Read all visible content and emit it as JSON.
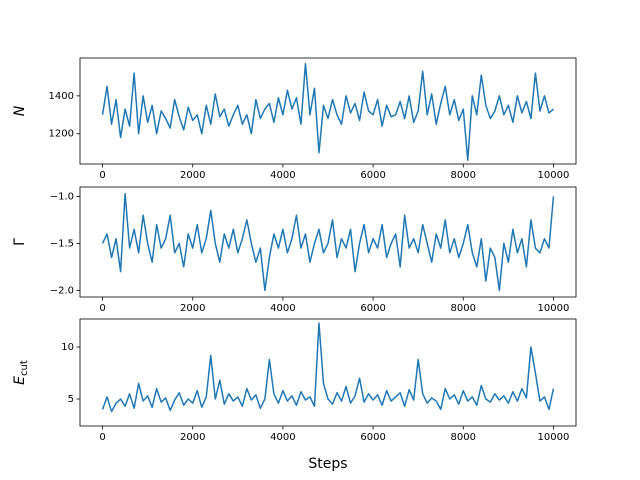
{
  "chart_data": [
    {
      "type": "line",
      "ylabel": "N",
      "x": [
        0,
        100,
        200,
        300,
        400,
        500,
        600,
        700,
        800,
        900,
        1000,
        1100,
        1200,
        1300,
        1400,
        1500,
        1600,
        1700,
        1800,
        1900,
        2000,
        2100,
        2200,
        2300,
        2400,
        2500,
        2600,
        2700,
        2800,
        2900,
        3000,
        3100,
        3200,
        3300,
        3400,
        3500,
        3600,
        3700,
        3800,
        3900,
        4000,
        4100,
        4200,
        4300,
        4400,
        4500,
        4600,
        4700,
        4800,
        4900,
        5000,
        5100,
        5200,
        5300,
        5400,
        5500,
        5600,
        5700,
        5800,
        5900,
        6000,
        6100,
        6200,
        6300,
        6400,
        6500,
        6600,
        6700,
        6800,
        6900,
        7000,
        7100,
        7200,
        7300,
        7400,
        7500,
        7600,
        7700,
        7800,
        7900,
        8000,
        8100,
        8200,
        8300,
        8400,
        8500,
        8600,
        8700,
        8800,
        8900,
        9000,
        9100,
        9200,
        9300,
        9400,
        9500,
        9600,
        9700,
        9800,
        9900,
        10000
      ],
      "series": [
        {
          "color": "#1f77b4",
          "values": [
            1300,
            1450,
            1250,
            1380,
            1180,
            1330,
            1240,
            1520,
            1200,
            1400,
            1260,
            1350,
            1200,
            1320,
            1280,
            1230,
            1380,
            1290,
            1220,
            1340,
            1270,
            1300,
            1200,
            1350,
            1250,
            1410,
            1290,
            1330,
            1240,
            1300,
            1350,
            1250,
            1300,
            1200,
            1380,
            1280,
            1330,
            1360,
            1260,
            1390,
            1300,
            1430,
            1330,
            1390,
            1250,
            1570,
            1300,
            1440,
            1100,
            1350,
            1280,
            1380,
            1300,
            1250,
            1400,
            1310,
            1360,
            1270,
            1420,
            1320,
            1300,
            1380,
            1240,
            1350,
            1290,
            1300,
            1370,
            1280,
            1400,
            1260,
            1320,
            1530,
            1300,
            1410,
            1250,
            1360,
            1450,
            1300,
            1380,
            1270,
            1330,
            1060,
            1400,
            1300,
            1510,
            1350,
            1280,
            1320,
            1400,
            1300,
            1350,
            1260,
            1400,
            1310,
            1370,
            1280,
            1520,
            1320,
            1400,
            1310,
            1330
          ]
        }
      ],
      "xlim": [
        -500,
        10500
      ],
      "xticks": [
        0,
        2000,
        4000,
        6000,
        8000,
        10000
      ],
      "ylim": [
        1040,
        1600
      ],
      "yticks": [
        1200,
        1400
      ]
    },
    {
      "type": "line",
      "ylabel": "Γ",
      "x": [
        0,
        100,
        200,
        300,
        400,
        500,
        600,
        700,
        800,
        900,
        1000,
        1100,
        1200,
        1300,
        1400,
        1500,
        1600,
        1700,
        1800,
        1900,
        2000,
        2100,
        2200,
        2300,
        2400,
        2500,
        2600,
        2700,
        2800,
        2900,
        3000,
        3100,
        3200,
        3300,
        3400,
        3500,
        3600,
        3700,
        3800,
        3900,
        4000,
        4100,
        4200,
        4300,
        4400,
        4500,
        4600,
        4700,
        4800,
        4900,
        5000,
        5100,
        5200,
        5300,
        5400,
        5500,
        5600,
        5700,
        5800,
        5900,
        6000,
        6100,
        6200,
        6300,
        6400,
        6500,
        6600,
        6700,
        6800,
        6900,
        7000,
        7100,
        7200,
        7300,
        7400,
        7500,
        7600,
        7700,
        7800,
        7900,
        8000,
        8100,
        8200,
        8300,
        8400,
        8500,
        8600,
        8700,
        8800,
        8900,
        9000,
        9100,
        9200,
        9300,
        9400,
        9500,
        9600,
        9700,
        9800,
        9900,
        10000
      ],
      "series": [
        {
          "color": "#1f77b4",
          "values": [
            -1.5,
            -1.4,
            -1.65,
            -1.45,
            -1.8,
            -0.97,
            -1.55,
            -1.35,
            -1.6,
            -1.2,
            -1.5,
            -1.7,
            -1.3,
            -1.55,
            -1.45,
            -1.2,
            -1.6,
            -1.5,
            -1.75,
            -1.4,
            -1.55,
            -1.3,
            -1.6,
            -1.45,
            -1.15,
            -1.5,
            -1.7,
            -1.4,
            -1.55,
            -1.35,
            -1.6,
            -1.45,
            -1.25,
            -1.5,
            -1.7,
            -1.55,
            -2.0,
            -1.65,
            -1.4,
            -1.55,
            -1.35,
            -1.6,
            -1.45,
            -1.2,
            -1.55,
            -1.4,
            -1.7,
            -1.5,
            -1.35,
            -1.6,
            -1.5,
            -1.25,
            -1.65,
            -1.45,
            -1.55,
            -1.35,
            -1.8,
            -1.5,
            -1.3,
            -1.6,
            -1.45,
            -1.55,
            -1.3,
            -1.65,
            -1.5,
            -1.4,
            -1.75,
            -1.2,
            -1.55,
            -1.45,
            -1.6,
            -1.3,
            -1.5,
            -1.7,
            -1.4,
            -1.55,
            -1.25,
            -1.6,
            -1.45,
            -1.65,
            -1.5,
            -1.3,
            -1.6,
            -1.75,
            -1.45,
            -1.9,
            -1.55,
            -1.65,
            -2.0,
            -1.5,
            -1.7,
            -1.35,
            -1.6,
            -1.45,
            -1.75,
            -1.25,
            -1.55,
            -1.6,
            -1.45,
            -1.55,
            -1.0
          ]
        }
      ],
      "xlim": [
        -500,
        10500
      ],
      "xticks": [
        0,
        2000,
        4000,
        6000,
        8000,
        10000
      ],
      "ylim": [
        -2.07,
        -0.9
      ],
      "yticks": [
        {
          "value": -2,
          "label": "−2.0"
        },
        {
          "value": -1.5,
          "label": "−1.5"
        },
        {
          "value": -1,
          "label": "−1.0"
        }
      ]
    },
    {
      "type": "line",
      "ylabel": "E",
      "ylabel_subscript": "cut",
      "xlabel": "Steps",
      "x": [
        0,
        100,
        200,
        300,
        400,
        500,
        600,
        700,
        800,
        900,
        1000,
        1100,
        1200,
        1300,
        1400,
        1500,
        1600,
        1700,
        1800,
        1900,
        2000,
        2100,
        2200,
        2300,
        2400,
        2500,
        2600,
        2700,
        2800,
        2900,
        3000,
        3100,
        3200,
        3300,
        3400,
        3500,
        3600,
        3700,
        3800,
        3900,
        4000,
        4100,
        4200,
        4300,
        4400,
        4500,
        4600,
        4700,
        4800,
        4900,
        5000,
        5100,
        5200,
        5300,
        5400,
        5500,
        5600,
        5700,
        5800,
        5900,
        6000,
        6100,
        6200,
        6300,
        6400,
        6500,
        6600,
        6700,
        6800,
        6900,
        7000,
        7100,
        7200,
        7300,
        7400,
        7500,
        7600,
        7700,
        7800,
        7900,
        8000,
        8100,
        8200,
        8300,
        8400,
        8500,
        8600,
        8700,
        8800,
        8900,
        9000,
        9100,
        9200,
        9300,
        9400,
        9500,
        9600,
        9700,
        9800,
        9900,
        10000
      ],
      "series": [
        {
          "color": "#1f77b4",
          "values": [
            4.0,
            5.2,
            3.8,
            4.6,
            5.0,
            4.3,
            5.5,
            4.1,
            6.5,
            4.8,
            5.3,
            4.2,
            6.0,
            4.7,
            5.1,
            3.9,
            4.9,
            5.6,
            4.4,
            5.0,
            4.6,
            5.8,
            4.2,
            5.2,
            9.2,
            5.0,
            6.8,
            4.5,
            5.5,
            4.8,
            5.2,
            4.3,
            6.0,
            4.9,
            5.4,
            4.1,
            5.0,
            8.8,
            5.5,
            4.6,
            5.8,
            4.8,
            5.3,
            4.4,
            5.7,
            4.9,
            5.2,
            4.3,
            12.3,
            6.5,
            5.0,
            4.5,
            5.6,
            4.8,
            6.2,
            4.6,
            5.3,
            7.0,
            4.7,
            5.5,
            4.9,
            5.4,
            4.4,
            5.8,
            4.8,
            5.2,
            5.6,
            4.3,
            5.9,
            4.9,
            8.8,
            5.5,
            4.6,
            5.1,
            4.8,
            4.0,
            6.0,
            5.0,
            5.4,
            4.5,
            5.8,
            4.8,
            5.2,
            4.4,
            6.3,
            5.0,
            4.7,
            5.5,
            4.9,
            5.3,
            4.6,
            5.7,
            4.8,
            6.0,
            5.1,
            10.0,
            7.5,
            4.8,
            5.2,
            4.0,
            6.0
          ]
        }
      ],
      "xlim": [
        -500,
        10500
      ],
      "xticks": [
        0,
        2000,
        4000,
        6000,
        8000,
        10000
      ],
      "ylim": [
        2.4,
        12.7
      ],
      "yticks": [
        5,
        10
      ]
    }
  ]
}
